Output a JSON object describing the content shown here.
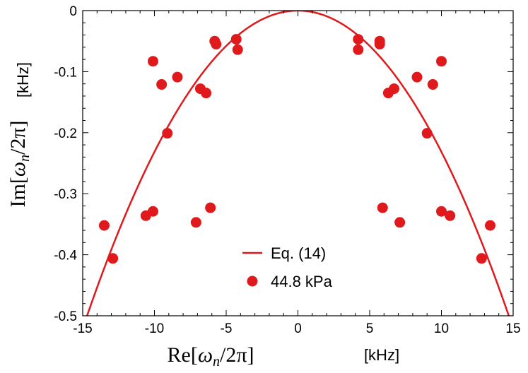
{
  "chart_data": {
    "type": "scatter",
    "xlabel_math": "Re[ωn/2π]",
    "xlabel_unit": "[kHz]",
    "ylabel_math": "Im[ωn/2π]",
    "ylabel_unit": "[kHz]",
    "xlim": [
      -15,
      15
    ],
    "ylim": [
      -0.5,
      0
    ],
    "xticks": [
      -15,
      -10,
      -5,
      0,
      5,
      10,
      15
    ],
    "xtick_labels": [
      "-15",
      "-10",
      "-5",
      "0",
      "5",
      "10",
      "15"
    ],
    "yticks": [
      0,
      -0.1,
      -0.2,
      -0.3,
      -0.4,
      -0.5
    ],
    "ytick_labels": [
      "0",
      "-0.1",
      "-0.2",
      "-0.3",
      "-0.4",
      "-0.5"
    ],
    "grid": false,
    "legend_position": "bottom-center",
    "series": [
      {
        "name": "Eq. (14)",
        "kind": "line",
        "color": "#e0191c",
        "formula": "y = -0.002315 * x^2",
        "coefficient": -0.002315
      },
      {
        "name": "44.8 kPa",
        "kind": "scatter",
        "color": "#e0191c",
        "points": [
          [
            -13.5,
            -0.352
          ],
          [
            -12.9,
            -0.406
          ],
          [
            -10.6,
            -0.336
          ],
          [
            -10.1,
            -0.329
          ],
          [
            -10.1,
            -0.083
          ],
          [
            -9.5,
            -0.121
          ],
          [
            -9.1,
            -0.201
          ],
          [
            -8.4,
            -0.109
          ],
          [
            -7.1,
            -0.347
          ],
          [
            -6.8,
            -0.128
          ],
          [
            -6.4,
            -0.135
          ],
          [
            -6.1,
            -0.323
          ],
          [
            -5.8,
            -0.05
          ],
          [
            -5.7,
            -0.055
          ],
          [
            -4.3,
            -0.047
          ],
          [
            -4.2,
            -0.064
          ],
          [
            4.2,
            -0.047
          ],
          [
            4.2,
            -0.064
          ],
          [
            5.7,
            -0.05
          ],
          [
            5.7,
            -0.055
          ],
          [
            5.9,
            -0.323
          ],
          [
            6.3,
            -0.135
          ],
          [
            6.7,
            -0.128
          ],
          [
            7.1,
            -0.347
          ],
          [
            8.3,
            -0.109
          ],
          [
            9.0,
            -0.201
          ],
          [
            9.4,
            -0.121
          ],
          [
            10.0,
            -0.083
          ],
          [
            10.0,
            -0.329
          ],
          [
            10.6,
            -0.336
          ],
          [
            12.8,
            -0.406
          ],
          [
            13.4,
            -0.352
          ]
        ]
      }
    ]
  }
}
